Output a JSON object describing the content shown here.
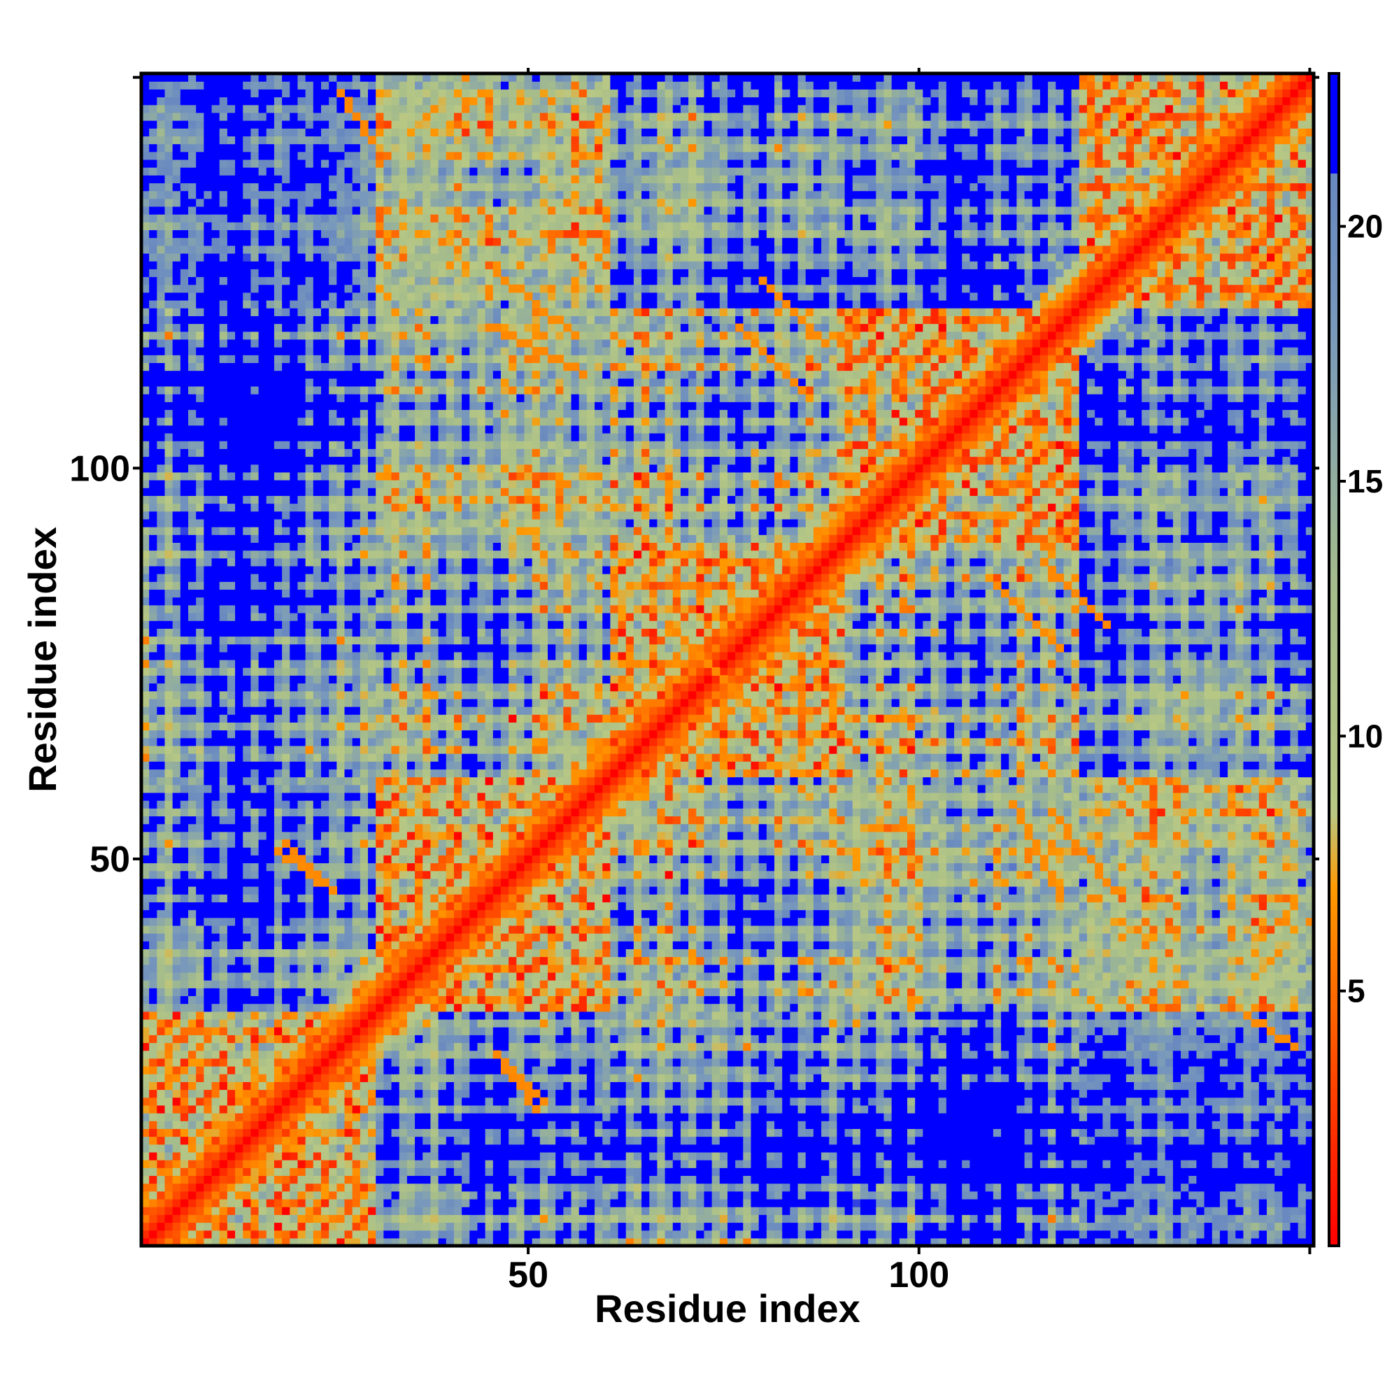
{
  "chart_data": {
    "type": "heatmap",
    "title": "",
    "xlabel": "Residue index",
    "ylabel": "Residue index",
    "n_residues": 150,
    "xlim": [
      1,
      150
    ],
    "ylim": [
      1,
      150
    ],
    "x_ticks": [
      50,
      100
    ],
    "y_ticks": [
      50,
      100
    ],
    "x_tick_labels": [
      "50",
      "100"
    ],
    "y_tick_labels": [
      "50",
      "100"
    ],
    "colorbar": {
      "min": 0,
      "max": 23,
      "ticks": [
        5,
        10,
        15,
        20
      ],
      "tick_labels": [
        "5",
        "10",
        "15",
        "20"
      ],
      "stops": [
        {
          "value": 0,
          "color": "#ff0000"
        },
        {
          "value": 3,
          "color": "#ff4000"
        },
        {
          "value": 7,
          "color": "#ff9900"
        },
        {
          "value": 8.5,
          "color": "#b8c884"
        },
        {
          "value": 13,
          "color": "#a4bc8c"
        },
        {
          "value": 18,
          "color": "#7898bc"
        },
        {
          "value": 21,
          "color": "#6888c0"
        },
        {
          "value": 21.01,
          "color": "#0000ff"
        },
        {
          "value": 23,
          "color": "#0000ff"
        }
      ]
    },
    "contact_segments": [
      {
        "from": [
          45,
          118
        ],
        "to": [
          57,
          112
        ]
      },
      {
        "from": [
          77,
          118
        ],
        "to": [
          85,
          110
        ]
      },
      {
        "from": [
          68,
          80
        ],
        "to": [
          76,
          72
        ]
      },
      {
        "from": [
          116,
          88
        ],
        "to": [
          124,
          80
        ]
      },
      {
        "from": [
          117,
          56
        ],
        "to": [
          125,
          46
        ]
      },
      {
        "from": [
          19,
          52
        ],
        "to": [
          25,
          46
        ]
      },
      {
        "from": [
          46,
          25
        ],
        "to": [
          51,
          18
        ]
      },
      {
        "from": [
          26,
          148
        ],
        "to": [
          30,
          142
        ]
      }
    ],
    "grid": false,
    "legend": "colorbar-right"
  }
}
